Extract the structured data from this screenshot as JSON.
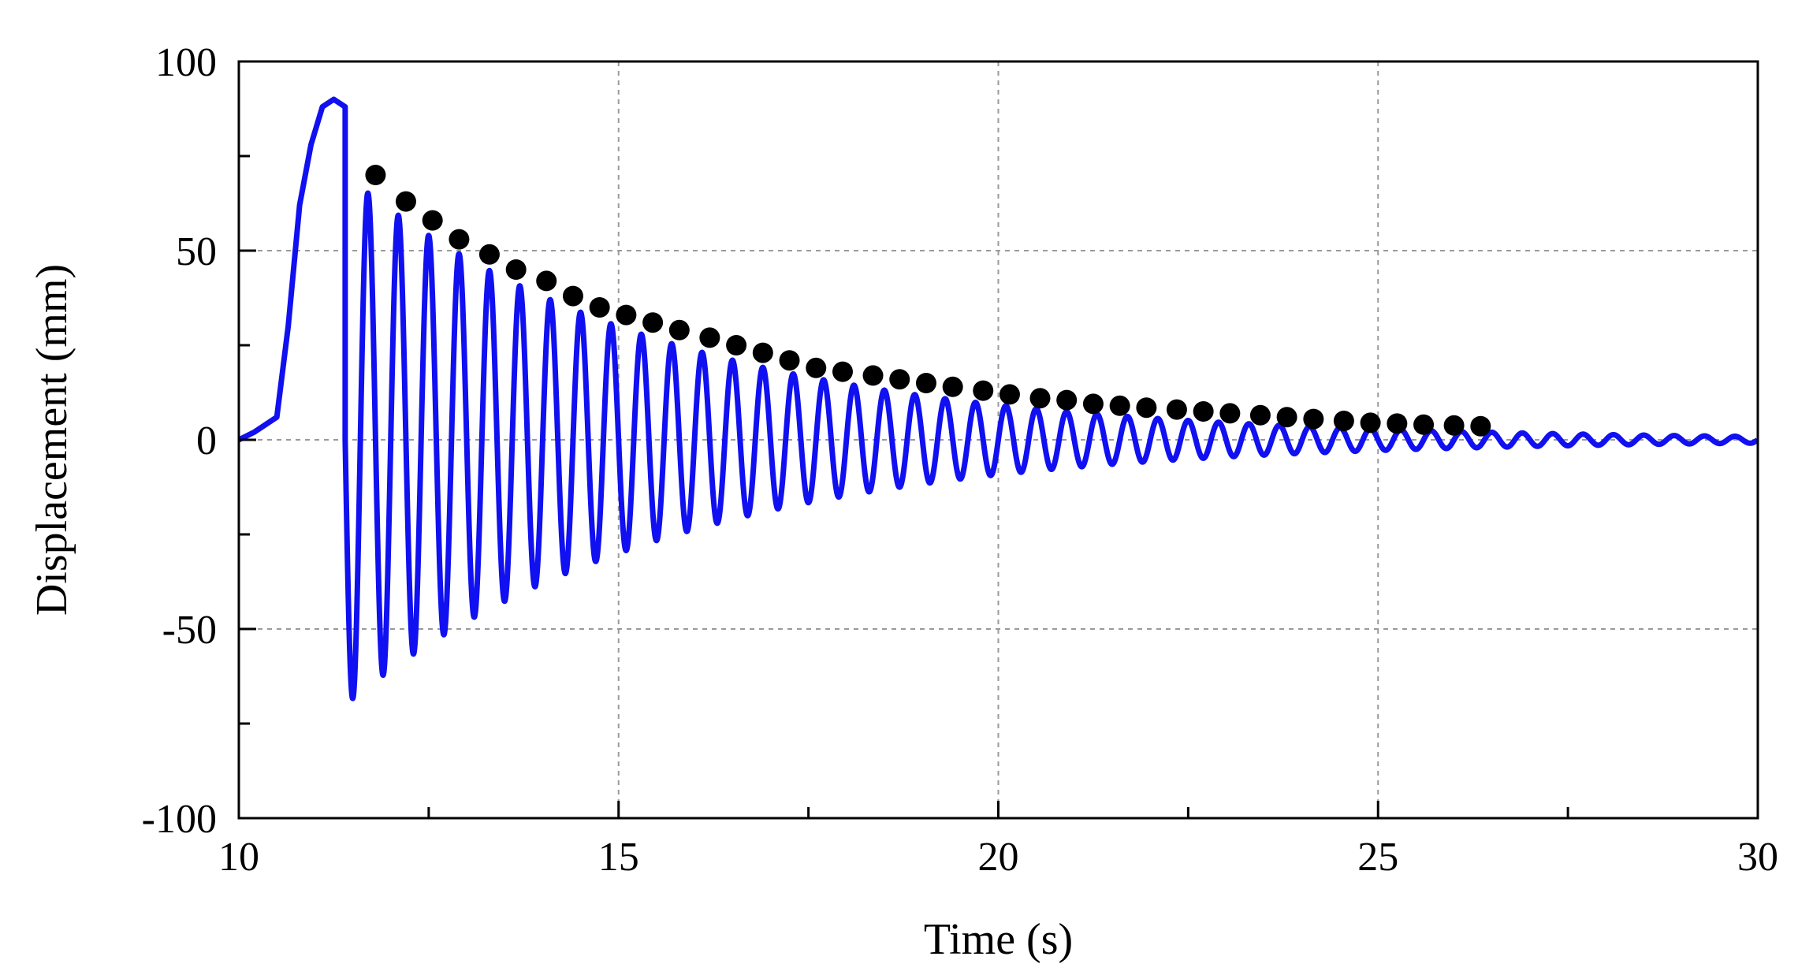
{
  "chart_data": {
    "type": "line",
    "title": "",
    "xlabel": "Time (s)",
    "ylabel": "Displacement (mm)",
    "xlim": [
      10,
      30
    ],
    "ylim": [
      -100,
      100
    ],
    "x_ticks": [
      10,
      15,
      20,
      25,
      30
    ],
    "y_ticks": [
      -100,
      -50,
      0,
      50,
      100
    ],
    "x_tick_labels": [
      "10",
      "15",
      "20",
      "25",
      "30"
    ],
    "y_tick_labels": [
      "-100",
      "-50",
      "0",
      "50",
      "100"
    ],
    "x_minor_step": 2.5,
    "y_minor_step": 25,
    "grid": true,
    "legend": "none",
    "colors": {
      "line": "#1010f0",
      "markers": "#000000",
      "grid": "#9a9a9a"
    },
    "series": [
      {
        "kind": "line",
        "description": "displacement time history",
        "pre_oscillation": {
          "x": [
            10.0,
            10.2,
            10.35,
            10.5,
            10.65,
            10.8,
            10.95,
            11.1,
            11.25,
            11.4
          ],
          "y": [
            0,
            2,
            4,
            6,
            30,
            62,
            78,
            88,
            90,
            88
          ]
        },
        "oscillation": {
          "start_time": 11.4,
          "period": 0.4,
          "start_amplitude": 70,
          "decay_per_cycle": 0.91,
          "end_time": 30
        }
      },
      {
        "kind": "scatter",
        "description": "peak markers",
        "x": [
          11.8,
          12.2,
          12.55,
          12.9,
          13.3,
          13.65,
          14.05,
          14.4,
          14.75,
          15.1,
          15.45,
          15.8,
          16.2,
          16.55,
          16.9,
          17.25,
          17.6,
          17.95,
          18.35,
          18.7,
          19.05,
          19.4,
          19.8,
          20.15,
          20.55,
          20.9,
          21.25,
          21.6,
          21.95,
          22.35,
          22.7,
          23.05,
          23.45,
          23.8,
          24.15,
          24.55,
          24.9,
          25.25,
          25.6,
          26.0,
          26.35
        ],
        "y": [
          70,
          63,
          58,
          53,
          49,
          45,
          42,
          38,
          35,
          33,
          31,
          29,
          27,
          25,
          23,
          21,
          19,
          18,
          17,
          16,
          15,
          14,
          13,
          12,
          11,
          10.5,
          9.5,
          9,
          8.5,
          8,
          7.5,
          7,
          6.5,
          6,
          5.5,
          5,
          4.5,
          4.3,
          4,
          3.8,
          3.6
        ]
      }
    ]
  }
}
